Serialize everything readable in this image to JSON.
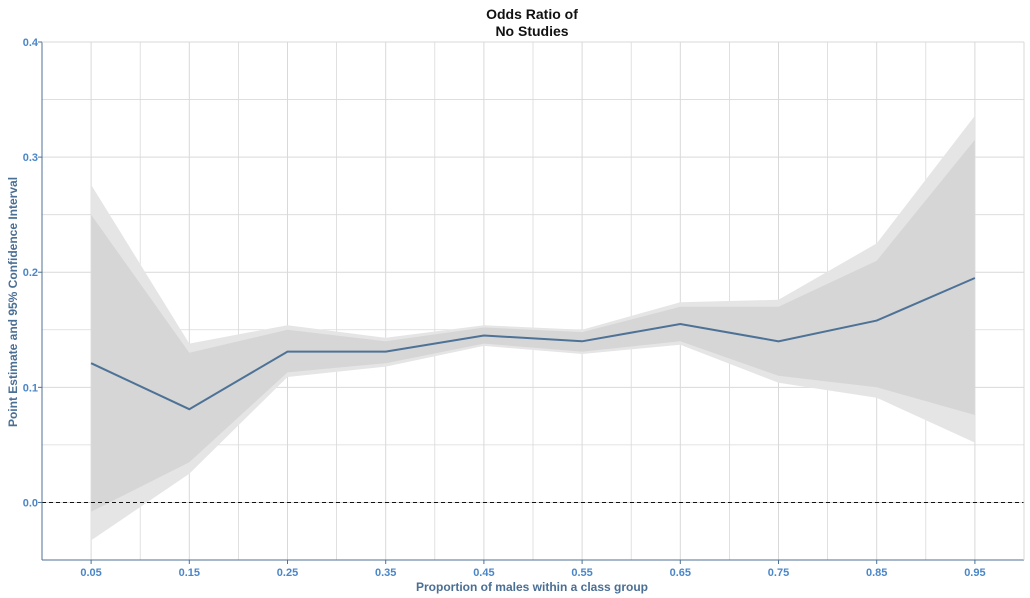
{
  "chart_data": {
    "type": "line",
    "title_line1": "Odds Ratio of",
    "title_line2": "No Studies",
    "xlabel": "Proportion of males within a class group",
    "ylabel": "Point Estimate and 95% Confidence Interval",
    "x": [
      0.05,
      0.15,
      0.25,
      0.35,
      0.45,
      0.55,
      0.65,
      0.75,
      0.85,
      0.95
    ],
    "x_tick_labels": [
      "0.05",
      "0.15",
      "0.25",
      "0.35",
      "0.45",
      "0.55",
      "0.65",
      "0.75",
      "0.85",
      "0.95"
    ],
    "y_ticks": [
      0.0,
      0.1,
      0.2,
      0.3,
      0.4
    ],
    "y_tick_labels": [
      "0.0",
      "0.1",
      "0.2",
      "0.3",
      "0.4"
    ],
    "xlim": [
      0.0,
      1.0
    ],
    "ylim": [
      -0.05,
      0.4
    ],
    "series": [
      {
        "values": [
          0.121,
          0.081,
          0.131,
          0.131,
          0.145,
          0.14,
          0.155,
          0.14,
          0.158,
          0.195
        ],
        "outer_upper": [
          0.276,
          0.138,
          0.154,
          0.143,
          0.154,
          0.15,
          0.174,
          0.176,
          0.225,
          0.336
        ],
        "outer_lower": [
          -0.033,
          0.025,
          0.109,
          0.118,
          0.136,
          0.129,
          0.137,
          0.104,
          0.091,
          0.052
        ],
        "inner_upper": [
          0.25,
          0.13,
          0.15,
          0.14,
          0.152,
          0.148,
          0.17,
          0.17,
          0.21,
          0.315
        ],
        "inner_lower": [
          -0.008,
          0.035,
          0.113,
          0.121,
          0.138,
          0.131,
          0.14,
          0.11,
          0.1,
          0.076
        ]
      }
    ],
    "reference_line": {
      "y": 0.0,
      "style": "dashed"
    },
    "grid": true,
    "legend": "none",
    "colors": {
      "line": "#4d7296",
      "band_outer": "#e5e5e5",
      "band_inner": "#d6d6d6",
      "grid": "#d9d9d9",
      "axis": "#4d7296",
      "tick_text": "#4a86c8",
      "axis_title": "#4a6f94"
    }
  }
}
